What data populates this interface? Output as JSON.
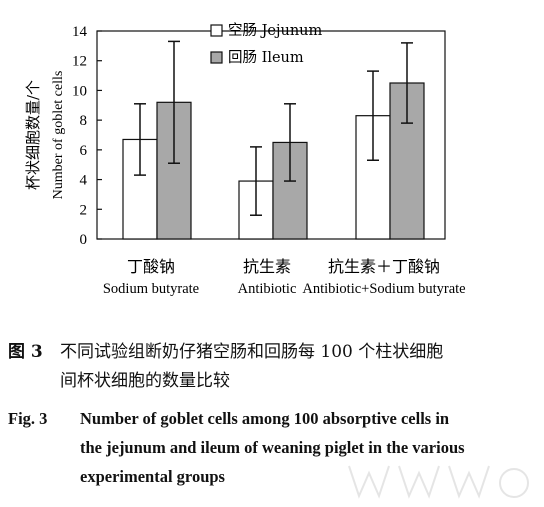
{
  "chart_data": {
    "type": "bar",
    "ylabel_cn": "杯状细胞数量/个",
    "ylabel_en": "Number of goblet cells",
    "ylim": [
      0,
      14
    ],
    "yticks": [
      "0",
      "2",
      "4",
      "6",
      "8",
      "10",
      "12",
      "14"
    ],
    "categories": [
      {
        "cn": "丁酸钠",
        "en": "Sodium butyrate"
      },
      {
        "cn": "抗生素",
        "en": "Antibiotic"
      },
      {
        "cn": "抗生素＋丁酸钠",
        "en": "Antibiotic+Sodium butyrate"
      }
    ],
    "series": [
      {
        "name": "空肠 Jejunum",
        "name_cn": "空肠",
        "name_en": "Jejunum",
        "fill": "#ffffff",
        "values": [
          6.7,
          3.9,
          8.3
        ],
        "err": [
          2.4,
          2.3,
          3.0
        ]
      },
      {
        "name": "回肠 Ileum",
        "name_cn": "回肠",
        "name_en": "Ileum",
        "fill": "#a8a8a8",
        "values": [
          9.2,
          6.5,
          10.5
        ],
        "err": [
          4.1,
          2.6,
          2.7
        ]
      }
    ],
    "legend_position": "top"
  },
  "caption": {
    "cn_label": "图 3",
    "cn_line1": "不同试验组断奶仔猪空肠和回肠每 100 个柱状细胞",
    "cn_line2": "间杯状细胞的数量比较",
    "en_label": "Fig. 3",
    "en_line1": "Number of goblet cells among 100 absorptive cells in",
    "en_line2": "the jejunum and ileum of weaning piglet in the various",
    "en_line3": "experimental groups"
  }
}
